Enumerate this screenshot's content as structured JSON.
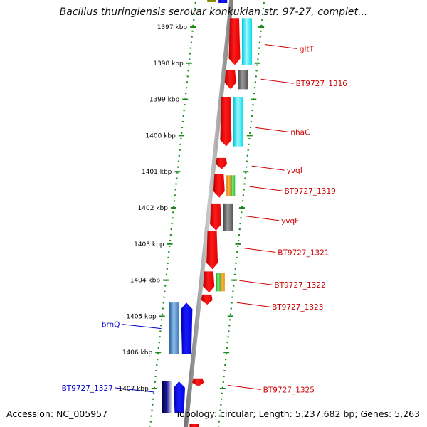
{
  "title": "Bacillus thuringiensis serovar konkukian str. 97-27, complet...",
  "footer": {
    "accession": "Accession: NC_005957",
    "summary": "Topology: circular; Length: 5,237,682 bp; Genes: 5,263"
  },
  "scale": {
    "unit": "kbp",
    "ticks": [
      {
        "label": "1397 kbp",
        "value": 1397
      },
      {
        "label": "1398 kbp",
        "value": 1398
      },
      {
        "label": "1399 kbp",
        "value": 1399
      },
      {
        "label": "1400 kbp",
        "value": 1400
      },
      {
        "label": "1401 kbp",
        "value": 1401
      },
      {
        "label": "1402 kbp",
        "value": 1402
      },
      {
        "label": "1403 kbp",
        "value": 1403
      },
      {
        "label": "1404 kbp",
        "value": 1404
      },
      {
        "label": "1405 kbp",
        "value": 1405
      },
      {
        "label": "1406 kbp",
        "value": 1406
      },
      {
        "label": "1407 kbp",
        "value": 1407
      }
    ]
  },
  "colors": {
    "forward_gene_label": "#cc0000",
    "reverse_gene_label": "#0000cc",
    "backbone": "#9a9a9a",
    "ruler_dots": "#1a8a1a",
    "forward_cds": "#ff0000",
    "reverse_cds": "#0000ff",
    "cog_cyan": "#00e5f0",
    "cog_gray": "#666666",
    "cog_orange": "#ff9900",
    "cog_green": "#33cc33",
    "cog_steelblue": "#4a88c8",
    "cog_navy": "#000066",
    "cog_olive": "#888800"
  },
  "genes": [
    {
      "name": "gltT",
      "strand": "+",
      "start_kbp": 1396.75,
      "end_kbp": 1398.05,
      "cog_color": "cog_cyan",
      "label_kbp": 1397.6
    },
    {
      "name": "BT9727_1316",
      "strand": "+",
      "start_kbp": 1398.2,
      "end_kbp": 1398.72,
      "cog_color": "cog_gray",
      "label_kbp": 1398.56
    },
    {
      "name": "nhaC",
      "strand": "+",
      "start_kbp": 1398.95,
      "end_kbp": 1400.3,
      "cog_color": "cog_cyan",
      "label_kbp": 1399.9
    },
    {
      "name": "yvqI",
      "strand": "+",
      "start_kbp": 1400.62,
      "end_kbp": 1400.93,
      "cog_color": "",
      "label_kbp": 1400.96
    },
    {
      "name": "BT9727_1319",
      "strand": "+",
      "start_kbp": 1401.06,
      "end_kbp": 1401.72,
      "cog_color": "cog_orange_green",
      "label_kbp": 1401.53
    },
    {
      "name": "yvqF",
      "strand": "+",
      "start_kbp": 1401.88,
      "end_kbp": 1402.63,
      "cog_color": "cog_gray",
      "label_kbp": 1402.35
    },
    {
      "name": "BT9727_1321",
      "strand": "+",
      "start_kbp": 1402.65,
      "end_kbp": 1403.7,
      "cog_color": "",
      "label_kbp": 1403.23
    },
    {
      "name": "BT9727_1322",
      "strand": "+",
      "start_kbp": 1403.76,
      "end_kbp": 1404.35,
      "cog_color": "cog_green_orange",
      "label_kbp": 1404.13
    },
    {
      "name": "BT9727_1323",
      "strand": "+",
      "start_kbp": 1404.4,
      "end_kbp": 1404.68,
      "cog_color": "",
      "label_kbp": 1404.74
    },
    {
      "name": "brnQ",
      "strand": "-",
      "start_kbp": 1404.62,
      "end_kbp": 1406.05,
      "cog_color": "cog_steelblue",
      "label_kbp": 1405.22
    },
    {
      "name": "BT9727_1325",
      "strand": "+",
      "start_kbp": 1406.72,
      "end_kbp": 1406.94,
      "cog_color": "",
      "label_kbp": 1407.03
    },
    {
      "name": "BT9727_1327",
      "strand": "-",
      "start_kbp": 1406.8,
      "end_kbp": 1407.68,
      "cog_color": "cog_navy",
      "label_kbp": 1406.98
    }
  ]
}
